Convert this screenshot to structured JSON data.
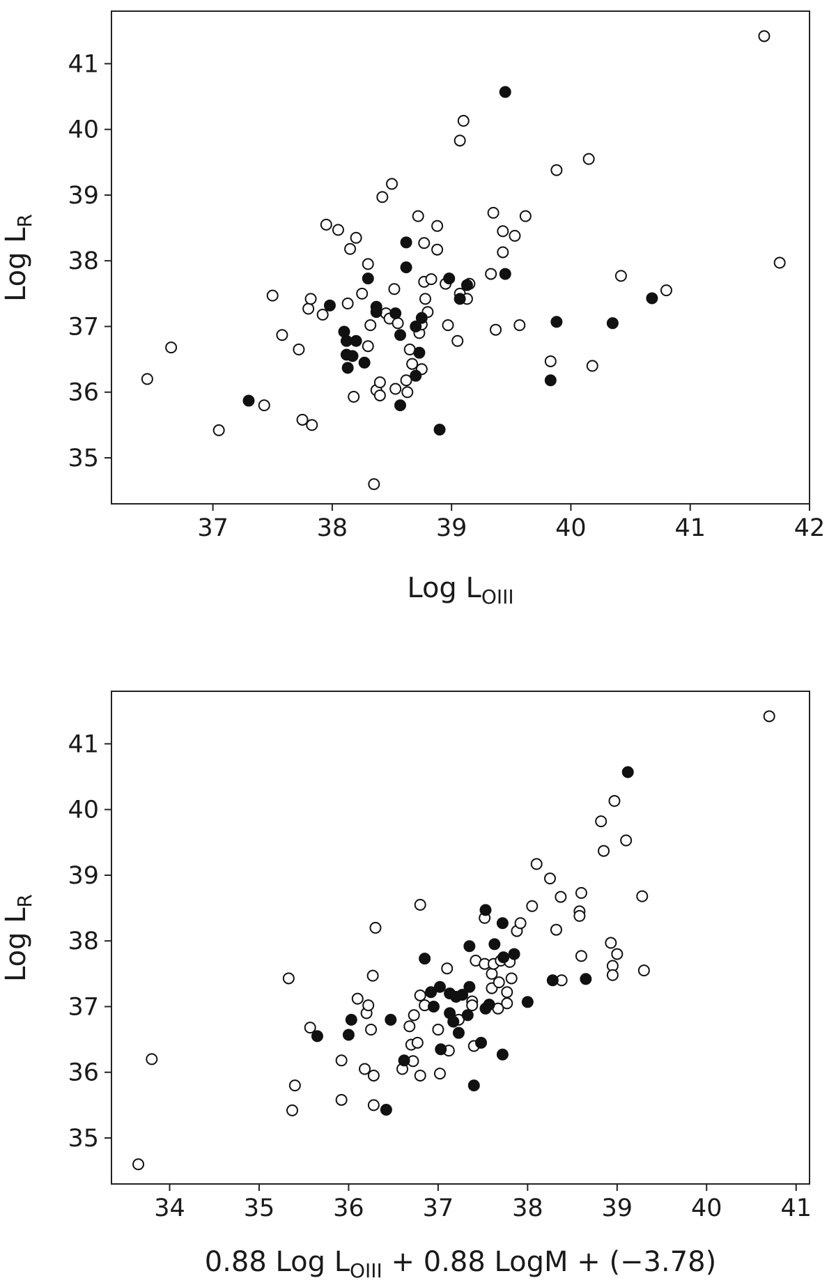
{
  "chart_data": [
    {
      "type": "scatter",
      "title": "",
      "xlabel": {
        "main": "Log L",
        "sub": "OIII"
      },
      "ylabel": {
        "main": "Log L",
        "sub": "R"
      },
      "xlim": [
        36.15,
        42.0
      ],
      "ylim": [
        34.3,
        41.8
      ],
      "xticks": [
        "37",
        "38",
        "39",
        "40",
        "41",
        "42"
      ],
      "yticks": [
        "35",
        "36",
        "37",
        "38",
        "39",
        "40",
        "41"
      ],
      "grid": false,
      "series": [
        {
          "marker": "open-circle",
          "points": [
            [
              36.45,
              36.2
            ],
            [
              36.65,
              36.68
            ],
            [
              37.05,
              35.42
            ],
            [
              37.43,
              35.8
            ],
            [
              37.5,
              37.47
            ],
            [
              37.58,
              36.87
            ],
            [
              37.72,
              36.65
            ],
            [
              37.75,
              35.58
            ],
            [
              37.8,
              37.27
            ],
            [
              37.82,
              37.42
            ],
            [
              37.83,
              35.5
            ],
            [
              37.92,
              37.18
            ],
            [
              37.95,
              38.55
            ],
            [
              38.05,
              38.47
            ],
            [
              38.13,
              37.35
            ],
            [
              38.15,
              38.18
            ],
            [
              38.18,
              35.93
            ],
            [
              38.2,
              38.35
            ],
            [
              38.25,
              37.5
            ],
            [
              38.3,
              37.95
            ],
            [
              38.3,
              36.7
            ],
            [
              38.32,
              37.02
            ],
            [
              38.35,
              34.6
            ],
            [
              38.37,
              36.03
            ],
            [
              38.4,
              35.95
            ],
            [
              38.4,
              36.15
            ],
            [
              38.42,
              38.97
            ],
            [
              38.45,
              37.2
            ],
            [
              38.48,
              37.12
            ],
            [
              38.5,
              39.17
            ],
            [
              38.52,
              37.57
            ],
            [
              38.53,
              36.05
            ],
            [
              38.55,
              37.05
            ],
            [
              38.62,
              36.18
            ],
            [
              38.63,
              36.0
            ],
            [
              38.65,
              36.65
            ],
            [
              38.67,
              36.43
            ],
            [
              38.72,
              38.68
            ],
            [
              38.73,
              36.9
            ],
            [
              38.75,
              37.03
            ],
            [
              38.75,
              36.35
            ],
            [
              38.77,
              38.27
            ],
            [
              38.77,
              37.68
            ],
            [
              38.78,
              37.42
            ],
            [
              38.8,
              37.22
            ],
            [
              38.83,
              37.72
            ],
            [
              38.88,
              38.53
            ],
            [
              38.88,
              38.17
            ],
            [
              38.95,
              37.65
            ],
            [
              38.97,
              37.02
            ],
            [
              39.05,
              36.78
            ],
            [
              39.07,
              37.5
            ],
            [
              39.07,
              39.83
            ],
            [
              39.1,
              40.13
            ],
            [
              39.15,
              37.65
            ],
            [
              39.13,
              37.42
            ],
            [
              39.33,
              37.8
            ],
            [
              39.35,
              38.73
            ],
            [
              39.37,
              36.95
            ],
            [
              39.43,
              38.13
            ],
            [
              39.43,
              38.45
            ],
            [
              39.53,
              38.38
            ],
            [
              39.57,
              37.02
            ],
            [
              39.62,
              38.68
            ],
            [
              39.83,
              36.47
            ],
            [
              39.88,
              39.38
            ],
            [
              40.15,
              39.55
            ],
            [
              40.18,
              36.4
            ],
            [
              40.42,
              37.77
            ],
            [
              40.8,
              37.55
            ],
            [
              41.62,
              41.42
            ],
            [
              41.75,
              37.97
            ]
          ]
        },
        {
          "marker": "filled-circle",
          "points": [
            [
              37.3,
              35.87
            ],
            [
              37.98,
              37.32
            ],
            [
              38.1,
              36.92
            ],
            [
              38.12,
              36.78
            ],
            [
              38.12,
              36.57
            ],
            [
              38.13,
              36.37
            ],
            [
              38.17,
              36.55
            ],
            [
              38.2,
              36.78
            ],
            [
              38.27,
              36.45
            ],
            [
              38.3,
              37.73
            ],
            [
              38.37,
              37.3
            ],
            [
              38.37,
              37.22
            ],
            [
              38.53,
              37.2
            ],
            [
              38.57,
              35.8
            ],
            [
              38.57,
              36.87
            ],
            [
              38.62,
              38.28
            ],
            [
              38.62,
              37.9
            ],
            [
              38.7,
              37.0
            ],
            [
              38.7,
              36.25
            ],
            [
              38.73,
              36.6
            ],
            [
              38.75,
              37.13
            ],
            [
              38.9,
              35.43
            ],
            [
              38.98,
              37.73
            ],
            [
              39.07,
              37.42
            ],
            [
              39.13,
              37.63
            ],
            [
              39.45,
              40.57
            ],
            [
              39.45,
              37.8
            ],
            [
              39.83,
              36.18
            ],
            [
              39.88,
              37.07
            ],
            [
              40.35,
              37.05
            ],
            [
              40.68,
              37.43
            ]
          ]
        }
      ]
    },
    {
      "type": "scatter",
      "title": "",
      "xlabel": {
        "main1": "0.88 Log L",
        "sub": "OIII",
        "main2": " + 0.88 LogM + (−3.78)"
      },
      "ylabel": {
        "main": "Log L",
        "sub": "R"
      },
      "xlim": [
        33.35,
        41.15
      ],
      "ylim": [
        34.3,
        41.8
      ],
      "xticks": [
        "34",
        "35",
        "36",
        "37",
        "38",
        "39",
        "40",
        "41"
      ],
      "yticks": [
        "35",
        "36",
        "37",
        "38",
        "39",
        "40",
        "41"
      ],
      "grid": false,
      "series": [
        {
          "marker": "open-circle",
          "points": [
            [
              33.65,
              34.6
            ],
            [
              33.8,
              36.2
            ],
            [
              35.33,
              37.43
            ],
            [
              35.37,
              35.42
            ],
            [
              35.4,
              35.8
            ],
            [
              35.57,
              36.68
            ],
            [
              35.92,
              35.58
            ],
            [
              35.92,
              36.18
            ],
            [
              36.1,
              37.12
            ],
            [
              36.18,
              36.05
            ],
            [
              36.2,
              36.9
            ],
            [
              36.22,
              37.02
            ],
            [
              36.25,
              36.65
            ],
            [
              36.27,
              37.47
            ],
            [
              36.28,
              35.95
            ],
            [
              36.28,
              35.5
            ],
            [
              36.3,
              38.2
            ],
            [
              36.6,
              36.05
            ],
            [
              36.68,
              36.7
            ],
            [
              36.7,
              36.42
            ],
            [
              36.72,
              36.17
            ],
            [
              36.73,
              36.87
            ],
            [
              36.77,
              36.45
            ],
            [
              36.8,
              37.17
            ],
            [
              36.8,
              35.95
            ],
            [
              36.8,
              38.55
            ],
            [
              36.85,
              37.02
            ],
            [
              37.0,
              36.65
            ],
            [
              37.02,
              35.98
            ],
            [
              37.1,
              37.58
            ],
            [
              37.12,
              36.33
            ],
            [
              37.23,
              36.8
            ],
            [
              37.38,
              37.08
            ],
            [
              37.38,
              37.02
            ],
            [
              37.4,
              36.4
            ],
            [
              37.42,
              37.7
            ],
            [
              37.52,
              38.35
            ],
            [
              37.52,
              37.65
            ],
            [
              37.6,
              37.28
            ],
            [
              37.6,
              37.5
            ],
            [
              37.62,
              37.65
            ],
            [
              37.67,
              36.97
            ],
            [
              37.68,
              37.37
            ],
            [
              37.7,
              37.7
            ],
            [
              37.77,
              37.22
            ],
            [
              37.77,
              37.05
            ],
            [
              37.8,
              37.68
            ],
            [
              37.82,
              37.43
            ],
            [
              37.88,
              38.15
            ],
            [
              37.92,
              38.27
            ],
            [
              38.05,
              38.53
            ],
            [
              38.1,
              39.17
            ],
            [
              38.25,
              38.95
            ],
            [
              38.32,
              38.17
            ],
            [
              38.37,
              38.67
            ],
            [
              38.38,
              37.4
            ],
            [
              38.58,
              38.45
            ],
            [
              38.58,
              38.38
            ],
            [
              38.6,
              38.73
            ],
            [
              38.6,
              37.77
            ],
            [
              38.82,
              39.82
            ],
            [
              38.85,
              39.37
            ],
            [
              38.93,
              37.97
            ],
            [
              38.95,
              37.62
            ],
            [
              38.95,
              37.48
            ],
            [
              38.97,
              40.13
            ],
            [
              39.0,
              37.8
            ],
            [
              39.1,
              39.53
            ],
            [
              39.28,
              38.68
            ],
            [
              39.3,
              37.55
            ],
            [
              40.7,
              41.42
            ]
          ]
        },
        {
          "marker": "filled-circle",
          "points": [
            [
              35.65,
              36.55
            ],
            [
              36.0,
              36.57
            ],
            [
              36.03,
              36.8
            ],
            [
              36.42,
              35.43
            ],
            [
              36.47,
              36.8
            ],
            [
              36.62,
              36.18
            ],
            [
              36.85,
              37.73
            ],
            [
              36.92,
              37.22
            ],
            [
              36.95,
              37.0
            ],
            [
              37.02,
              37.3
            ],
            [
              37.03,
              36.35
            ],
            [
              37.13,
              36.9
            ],
            [
              37.13,
              37.2
            ],
            [
              37.17,
              36.77
            ],
            [
              37.2,
              37.15
            ],
            [
              37.23,
              36.6
            ],
            [
              37.27,
              37.18
            ],
            [
              37.33,
              36.87
            ],
            [
              37.35,
              37.92
            ],
            [
              37.35,
              37.3
            ],
            [
              37.4,
              35.8
            ],
            [
              37.48,
              36.45
            ],
            [
              37.53,
              38.47
            ],
            [
              37.53,
              36.97
            ],
            [
              37.57,
              37.03
            ],
            [
              37.63,
              37.95
            ],
            [
              37.72,
              38.27
            ],
            [
              37.72,
              36.27
            ],
            [
              37.73,
              37.75
            ],
            [
              37.85,
              37.8
            ],
            [
              38.0,
              37.07
            ],
            [
              38.28,
              37.4
            ],
            [
              38.65,
              37.42
            ],
            [
              39.12,
              40.57
            ]
          ]
        }
      ]
    }
  ]
}
